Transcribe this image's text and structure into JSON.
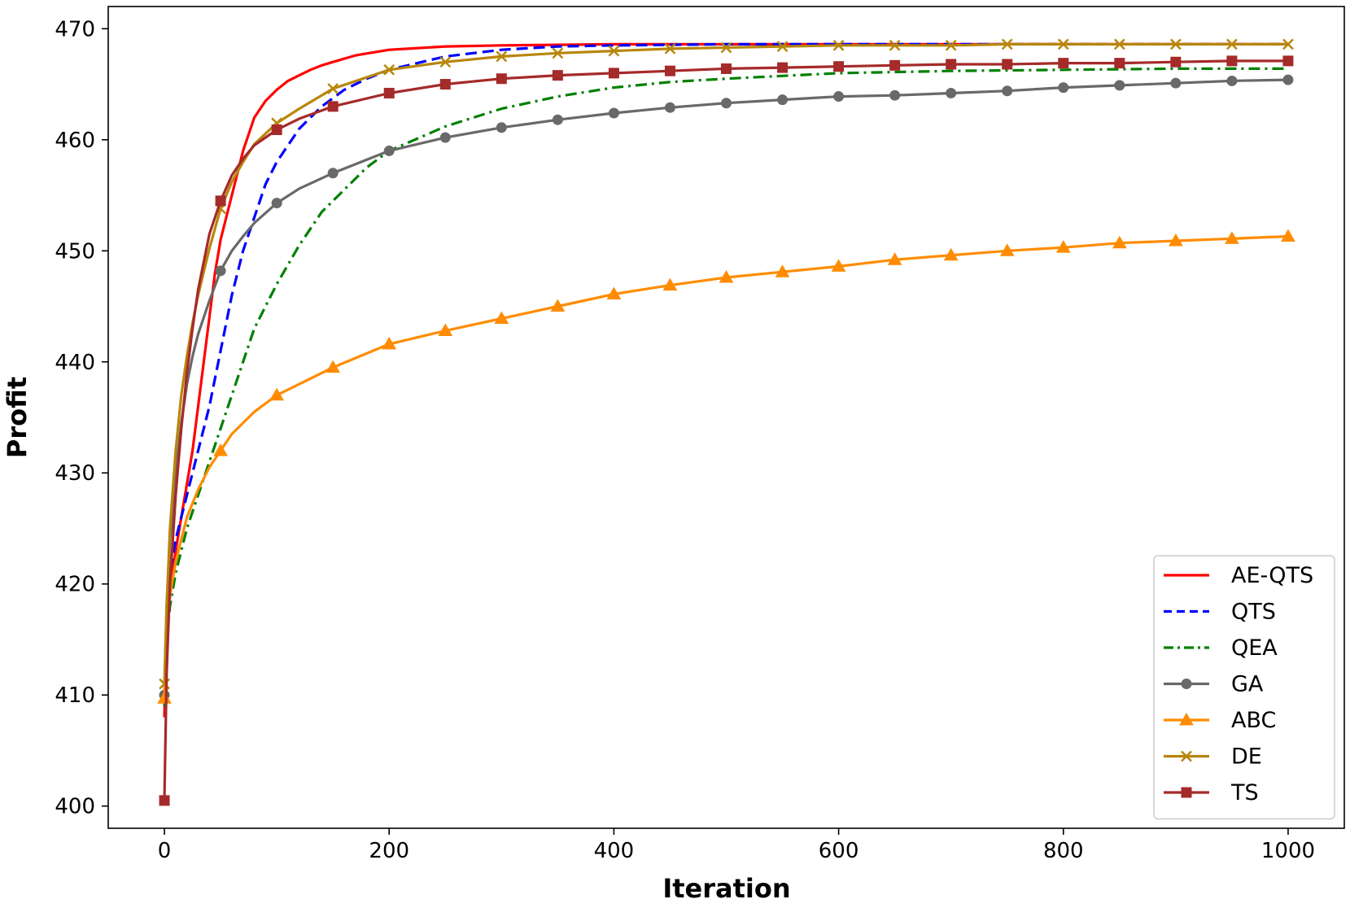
{
  "chart_data": {
    "type": "line",
    "title": "",
    "xlabel": "Iteration",
    "ylabel": "Profit",
    "xlim": [
      -50,
      1050
    ],
    "ylim": [
      398,
      472
    ],
    "xticks": [
      0,
      200,
      400,
      600,
      800,
      1000
    ],
    "yticks": [
      400,
      410,
      420,
      430,
      440,
      450,
      460,
      470
    ],
    "grid": false,
    "legend_position": "lower right",
    "series": [
      {
        "name": "AE-QTS",
        "color": "#ff0000",
        "dash": "solid",
        "marker": "none",
        "x": [
          0,
          2,
          5,
          10,
          15,
          20,
          25,
          30,
          35,
          40,
          45,
          50,
          60,
          70,
          80,
          90,
          100,
          110,
          120,
          130,
          140,
          150,
          170,
          200,
          250,
          300,
          400,
          500,
          600,
          700,
          800,
          900,
          1000
        ],
        "y": [
          408,
          415,
          419,
          423,
          426,
          429,
          432,
          436,
          440,
          444,
          448,
          451,
          455,
          459,
          462,
          463.5,
          464.5,
          465.3,
          465.8,
          466.3,
          466.7,
          467,
          467.6,
          468.1,
          468.4,
          468.5,
          468.6,
          468.6,
          468.6,
          468.6,
          468.6,
          468.6,
          468.6
        ]
      },
      {
        "name": "QTS",
        "color": "#0000ff",
        "dash": "dashed",
        "marker": "none",
        "x": [
          0,
          2,
          5,
          10,
          15,
          20,
          25,
          30,
          40,
          50,
          60,
          70,
          80,
          90,
          100,
          120,
          140,
          160,
          180,
          200,
          250,
          300,
          350,
          400,
          500,
          600,
          700,
          800,
          900,
          1000
        ],
        "y": [
          409,
          417,
          421,
          424,
          426,
          428,
          430,
          432,
          436,
          441,
          446,
          450,
          453,
          456,
          458,
          461,
          463,
          464.5,
          465.5,
          466.3,
          467.5,
          468.1,
          468.4,
          468.5,
          468.6,
          468.6,
          468.6,
          468.6,
          468.6,
          468.6
        ]
      },
      {
        "name": "QEA",
        "color": "#008000",
        "dash": "dashdot",
        "marker": "none",
        "x": [
          0,
          2,
          5,
          10,
          20,
          30,
          40,
          50,
          60,
          70,
          80,
          90,
          100,
          120,
          140,
          160,
          180,
          200,
          250,
          300,
          350,
          400,
          450,
          500,
          600,
          700,
          800,
          900,
          1000
        ],
        "y": [
          409,
          415,
          418,
          421,
          425,
          428,
          431,
          434,
          437,
          440,
          443,
          445,
          447,
          450.5,
          453.5,
          455.5,
          457.5,
          459,
          461.2,
          462.8,
          463.9,
          464.7,
          465.2,
          465.5,
          466,
          466.2,
          466.3,
          466.4,
          466.4
        ]
      },
      {
        "name": "GA",
        "color": "#696969",
        "dash": "solid",
        "marker": "circle",
        "x": [
          0,
          2,
          5,
          10,
          15,
          20,
          25,
          30,
          40,
          50,
          60,
          70,
          80,
          100,
          120,
          150,
          200,
          250,
          300,
          350,
          400,
          450,
          500,
          550,
          600,
          650,
          700,
          750,
          800,
          850,
          900,
          950,
          1000
        ],
        "y": [
          410,
          418,
          424,
          430,
          434.5,
          438,
          440.5,
          442.5,
          445.5,
          448.2,
          450,
          451.3,
          452.5,
          454.3,
          455.6,
          457,
          459,
          460.2,
          461.1,
          461.8,
          462.4,
          462.9,
          463.3,
          463.6,
          463.9,
          464,
          464.2,
          464.4,
          464.7,
          464.9,
          465.1,
          465.3,
          465.4
        ]
      },
      {
        "name": "ABC",
        "color": "#ff8c00",
        "dash": "solid",
        "marker": "triangle",
        "x": [
          0,
          2,
          5,
          10,
          15,
          20,
          30,
          40,
          50,
          60,
          70,
          80,
          100,
          120,
          150,
          200,
          250,
          300,
          350,
          400,
          450,
          500,
          550,
          600,
          650,
          700,
          750,
          800,
          850,
          900,
          950,
          1000
        ],
        "y": [
          409.7,
          416,
          419,
          422,
          424,
          426,
          428.5,
          430.5,
          432,
          433.5,
          434.5,
          435.5,
          437,
          438,
          439.5,
          441.6,
          442.8,
          443.9,
          445,
          446.1,
          446.9,
          447.6,
          448.1,
          448.6,
          449.2,
          449.6,
          450,
          450.3,
          450.7,
          450.9,
          451.1,
          451.3
        ]
      },
      {
        "name": "DE",
        "color": "#b8860b",
        "dash": "solid",
        "marker": "x",
        "x": [
          0,
          2,
          5,
          10,
          15,
          20,
          25,
          30,
          40,
          50,
          60,
          70,
          80,
          100,
          120,
          150,
          200,
          250,
          300,
          350,
          400,
          450,
          500,
          550,
          600,
          650,
          700,
          750,
          800,
          850,
          900,
          950,
          1000
        ],
        "y": [
          411,
          418,
          425,
          432,
          437,
          440.5,
          443.5,
          446,
          450.2,
          453.8,
          456.2,
          458,
          459.6,
          461.5,
          462.8,
          464.6,
          466.3,
          467,
          467.5,
          467.8,
          468,
          468.2,
          468.3,
          468.4,
          468.5,
          468.5,
          468.5,
          468.6,
          468.6,
          468.6,
          468.6,
          468.6,
          468.6
        ]
      },
      {
        "name": "TS",
        "color": "#a52a2a",
        "dash": "solid",
        "marker": "square",
        "x": [
          0,
          2,
          5,
          10,
          15,
          20,
          25,
          30,
          40,
          50,
          60,
          70,
          80,
          100,
          120,
          150,
          200,
          250,
          300,
          350,
          400,
          450,
          500,
          550,
          600,
          650,
          700,
          750,
          800,
          850,
          900,
          950,
          1000
        ],
        "y": [
          400.5,
          412,
          420,
          428,
          434,
          439,
          443,
          446.5,
          451.5,
          454.5,
          456.8,
          458.3,
          459.5,
          460.9,
          461.9,
          463,
          464.2,
          465,
          465.5,
          465.8,
          466,
          466.2,
          466.4,
          466.5,
          466.6,
          466.7,
          466.8,
          466.8,
          466.9,
          466.9,
          467,
          467.1,
          467.1
        ]
      }
    ]
  }
}
